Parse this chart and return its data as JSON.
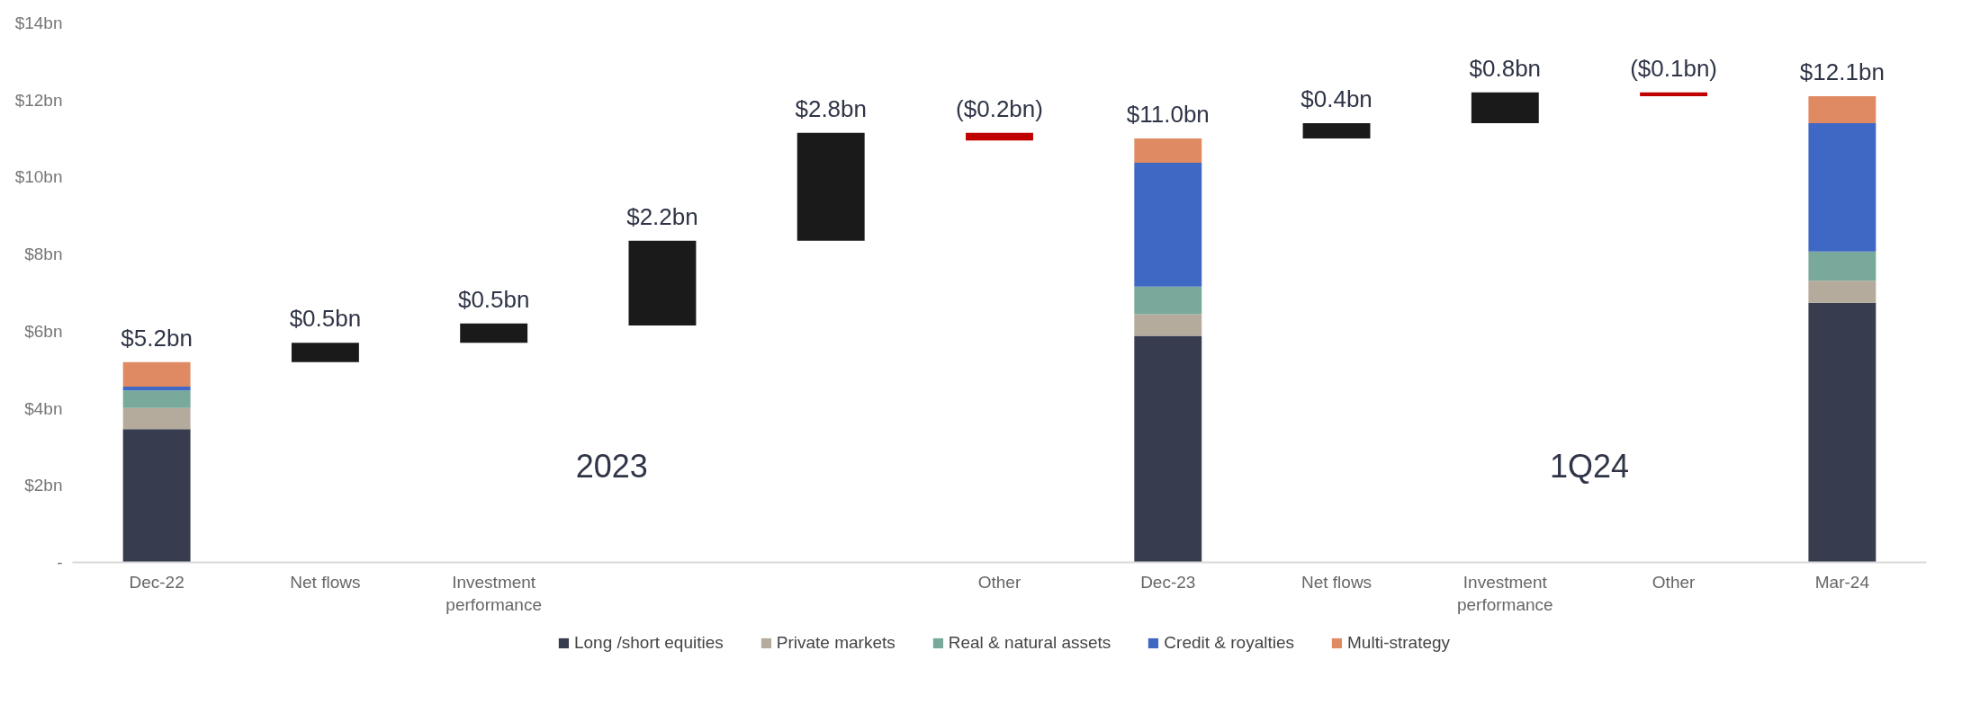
{
  "chart_data": {
    "type": "bar",
    "stacked": true,
    "categories": [
      "Dec-22",
      "Net flows",
      "Investment\nperformance",
      null,
      null,
      "Other",
      "Dec-23",
      "Net flows",
      "Investment\nperformance",
      "Other",
      "Mar-24"
    ],
    "series": [
      {
        "name": "Long /short equities",
        "color": "#373d4f",
        "values": [
          3.46,
          null,
          null,
          null,
          null,
          null,
          5.88,
          null,
          null,
          null,
          6.74
        ]
      },
      {
        "name": "Private markets",
        "color": "#b5ab9c",
        "values": [
          0.55,
          null,
          null,
          null,
          null,
          null,
          0.56,
          null,
          null,
          null,
          0.57
        ]
      },
      {
        "name": "Real & natural assets",
        "color": "#78a99a",
        "values": [
          0.45,
          null,
          null,
          null,
          null,
          null,
          0.72,
          null,
          null,
          null,
          0.76
        ]
      },
      {
        "name": "Credit & royalties",
        "color": "#3f67c4",
        "values": [
          0.1,
          null,
          null,
          null,
          null,
          null,
          3.21,
          null,
          null,
          null,
          3.33
        ]
      },
      {
        "name": "Multi-strategy",
        "color": "#e08a63",
        "values": [
          0.64,
          null,
          null,
          null,
          null,
          null,
          0.63,
          null,
          null,
          null,
          0.7
        ]
      },
      {
        "colors": [
          "#1a1a1a",
          "#1a1a1a",
          "#1a1a1a",
          "#1a1a1a",
          "#1a1a1a",
          "#c00000",
          "#1a1a1a",
          "#1a1a1a",
          "#1a1a1a",
          "#c00000",
          "#1a1a1a"
        ],
        "base": [
          null,
          5.2,
          5.7,
          6.15,
          8.35,
          11.15,
          null,
          11.0,
          11.4,
          12.2,
          null
        ],
        "values": [
          null,
          0.5,
          0.5,
          2.2,
          2.8,
          -0.2,
          null,
          0.4,
          0.8,
          -0.1,
          null
        ],
        "value_labels": [
          null,
          "$0.5bn",
          "$0.5bn",
          "$2.2bn",
          "$2.8bn",
          "($0.2bn)",
          null,
          "$0.4bn",
          "$0.8bn",
          "($0.1bn)",
          null
        ]
      }
    ],
    "totals": [
      "$5.2bn",
      null,
      null,
      null,
      null,
      null,
      "$11.0bn",
      null,
      null,
      null,
      "$12.1bn"
    ],
    "ylim": [
      0,
      14
    ],
    "yticks": [
      {
        "value": 0,
        "label": "-"
      },
      {
        "value": 2,
        "label": "$2bn"
      },
      {
        "value": 4,
        "label": "$4bn"
      },
      {
        "value": 6,
        "label": "$6bn"
      },
      {
        "value": 8,
        "label": "$8bn"
      },
      {
        "value": 10,
        "label": "$10bn"
      },
      {
        "value": 12,
        "label": "$12bn"
      },
      {
        "value": 14,
        "label": "$14bn"
      }
    ],
    "annotations": [
      "2023",
      "1Q24"
    ],
    "grid": false,
    "legend": "bottom"
  }
}
